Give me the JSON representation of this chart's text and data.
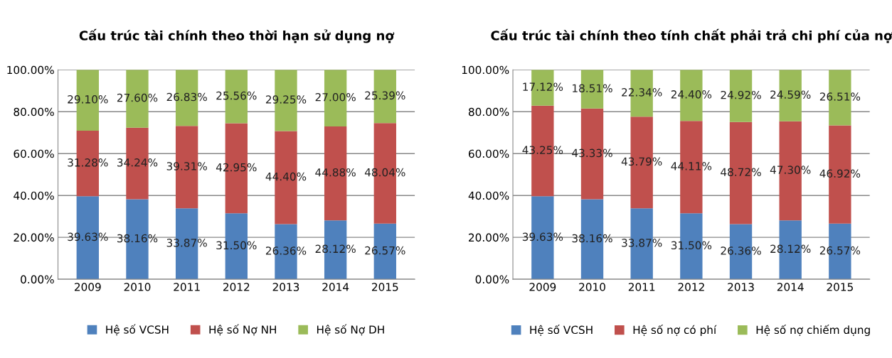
{
  "chart_data": [
    {
      "type": "bar",
      "title": "Cấu trúc tài chính theo thời hạn sử dụng nợ",
      "categories": [
        "2009",
        "2010",
        "2011",
        "2012",
        "2013",
        "2014",
        "2015"
      ],
      "stacked": true,
      "ylim": [
        0,
        100
      ],
      "yticks": [
        {
          "value": 0,
          "label": "0.00%"
        },
        {
          "value": 20,
          "label": "20.00%"
        },
        {
          "value": 40,
          "label": "40.00%"
        },
        {
          "value": 60,
          "label": "60.00%"
        },
        {
          "value": 80,
          "label": "80.00%"
        },
        {
          "value": 100,
          "label": "100.00%"
        }
      ],
      "grid": "y",
      "legend": "bottom",
      "series": [
        {
          "name": "Hệ số VCSH",
          "color": "#4f81bd",
          "values": [
            39.63,
            38.16,
            33.87,
            31.5,
            26.36,
            28.12,
            26.57
          ],
          "value_labels": [
            "39.63%",
            "38.16%",
            "33.87%",
            "31.50%",
            "26.36%",
            "28.12%",
            "26.57%"
          ]
        },
        {
          "name": "Hệ số Nợ NH",
          "color": "#c0504d",
          "values": [
            31.28,
            34.24,
            39.31,
            42.95,
            44.4,
            44.88,
            48.04
          ],
          "value_labels": [
            "31.28%",
            "34.24%",
            "39.31%",
            "42.95%",
            "44.40%",
            "44.88%",
            "48.04%"
          ]
        },
        {
          "name": "Hệ số Nợ DH",
          "color": "#9bbb59",
          "values": [
            29.1,
            27.6,
            26.83,
            25.56,
            29.25,
            27.0,
            25.39
          ],
          "value_labels": [
            "29.10%",
            "27.60%",
            "26.83%",
            "25.56%",
            "29.25%",
            "27.00%",
            "25.39%"
          ]
        }
      ]
    },
    {
      "type": "bar",
      "title": "Cấu trúc tài chính theo tính chất phải trả chi phí của nợ",
      "categories": [
        "2009",
        "2010",
        "2011",
        "2012",
        "2013",
        "2014",
        "2015"
      ],
      "stacked": true,
      "ylim": [
        0,
        100
      ],
      "yticks": [
        {
          "value": 0,
          "label": "0.00%"
        },
        {
          "value": 20,
          "label": "20.00%"
        },
        {
          "value": 40,
          "label": "40.00%"
        },
        {
          "value": 60,
          "label": "60.00%"
        },
        {
          "value": 80,
          "label": "80.00%"
        },
        {
          "value": 100,
          "label": "100.00%"
        }
      ],
      "grid": "y",
      "legend": "bottom",
      "series": [
        {
          "name": "Hệ số VCSH",
          "color": "#4f81bd",
          "values": [
            39.63,
            38.16,
            33.87,
            31.5,
            26.36,
            28.12,
            26.57
          ],
          "value_labels": [
            "39.63%",
            "38.16%",
            "33.87%",
            "31.50%",
            "26.36%",
            "28.12%",
            "26.57%"
          ]
        },
        {
          "name": "Hệ số nợ có phí",
          "color": "#c0504d",
          "values": [
            43.25,
            43.33,
            43.79,
            44.11,
            48.72,
            47.3,
            46.92
          ],
          "value_labels": [
            "43.25%",
            "43.33%",
            "43.79%",
            "44.11%",
            "48.72%",
            "47.30%",
            "46.92%"
          ]
        },
        {
          "name": "Hệ số nợ chiếm dụng",
          "color": "#9bbb59",
          "values": [
            17.12,
            18.51,
            22.34,
            24.4,
            24.92,
            24.59,
            26.51
          ],
          "value_labels": [
            "17.12%",
            "18.51%",
            "22.34%",
            "24.40%",
            "24.92%",
            "24.59%",
            "26.51%"
          ]
        }
      ]
    }
  ]
}
